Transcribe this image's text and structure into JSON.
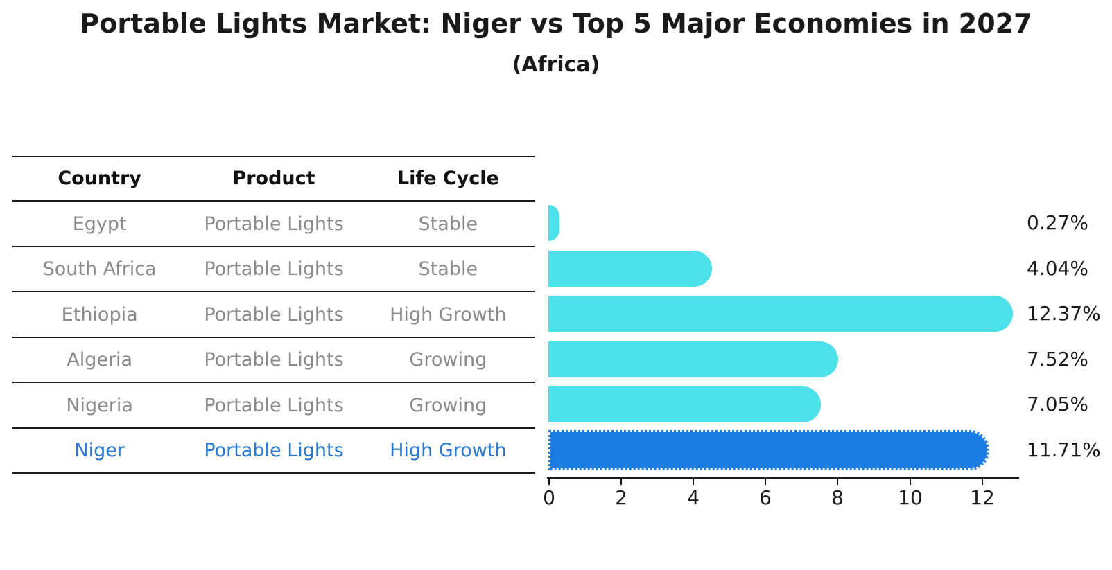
{
  "header": {
    "title": "Portable Lights Market: Niger vs Top 5 Major Economies in 2027",
    "subtitle": "(Africa)"
  },
  "table": {
    "headers": [
      "Country",
      "Product",
      "Life Cycle"
    ],
    "rows": [
      {
        "country": "Egypt",
        "product": "Portable Lights",
        "life_cycle": "Stable",
        "highlight": false
      },
      {
        "country": "South Africa",
        "product": "Portable Lights",
        "life_cycle": "Stable",
        "highlight": false
      },
      {
        "country": "Ethiopia",
        "product": "Portable Lights",
        "life_cycle": "High Growth",
        "highlight": false
      },
      {
        "country": "Algeria",
        "product": "Portable Lights",
        "life_cycle": "Growing",
        "highlight": false
      },
      {
        "country": "Nigeria",
        "product": "Portable Lights",
        "life_cycle": "Growing",
        "highlight": false
      },
      {
        "country": "Niger",
        "product": "Portable Lights",
        "life_cycle": "High Growth",
        "highlight": true
      }
    ]
  },
  "chart_data": {
    "type": "bar",
    "orientation": "horizontal",
    "title": "Portable Lights Market: Niger vs Top 5 Major Economies in 2027",
    "subtitle": "(Africa)",
    "categories": [
      "Egypt",
      "South Africa",
      "Ethiopia",
      "Algeria",
      "Nigeria",
      "Niger"
    ],
    "values": [
      0.27,
      4.04,
      12.37,
      7.52,
      7.05,
      11.71
    ],
    "value_labels": [
      "0.27%",
      "4.04%",
      "12.37%",
      "7.52%",
      "7.05%",
      "11.71%"
    ],
    "highlight_index": 5,
    "xlabel": "",
    "ylabel": "",
    "xlim": [
      0,
      13.05
    ],
    "xticks": [
      0,
      2,
      4,
      6,
      8,
      10,
      12
    ],
    "grid": false,
    "legend": "none"
  },
  "colors": {
    "bar_cyan": "#4ce1e8",
    "bar_blue": "#1b7ce6",
    "niger_text": "#2979d2",
    "muted_text": "#8a8a8a",
    "ink": "#1a1a1a"
  }
}
